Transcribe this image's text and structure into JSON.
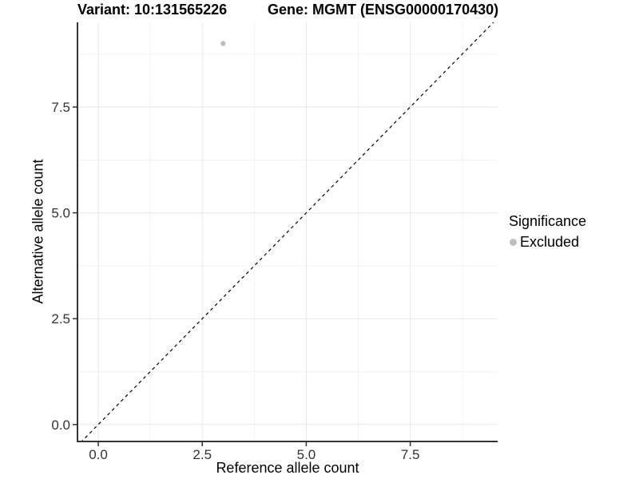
{
  "chart_data": {
    "type": "scatter",
    "title_variant": "Variant: 10:131565226",
    "title_gene": "Gene: MGMT (ENSG00000170430)",
    "xlabel": "Reference allele count",
    "ylabel": "Alternative allele count",
    "x_ticks": [
      0.0,
      2.5,
      5.0,
      7.5
    ],
    "y_ticks": [
      0.0,
      2.5,
      5.0,
      7.5
    ],
    "x_tick_labels": [
      "0.0",
      "2.5",
      "5.0",
      "7.5"
    ],
    "y_tick_labels": [
      "0.0",
      "2.5",
      "5.0",
      "7.5"
    ],
    "x_minor_ticks": [
      1.25,
      3.75,
      6.25,
      8.75
    ],
    "y_minor_ticks": [
      1.25,
      3.75,
      6.25,
      8.75
    ],
    "x_range": [
      -0.5,
      9.6
    ],
    "y_range": [
      -0.4,
      9.5
    ],
    "grid": true,
    "points": [
      {
        "x": 3,
        "y": 9,
        "series": "Excluded",
        "color": "#bebebe"
      }
    ],
    "reference_line": {
      "type": "identity",
      "style": "dashed",
      "color": "#000000"
    },
    "legend": {
      "title": "Significance",
      "position": "right",
      "entries": [
        {
          "label": "Excluded",
          "color": "#bebebe",
          "marker": "circle"
        }
      ]
    },
    "colors": {
      "point": "#bebebe",
      "grid_major": "#e7e7e7",
      "grid_minor": "#f2f2f2",
      "axis_line": "#333333",
      "tick_text": "#333333",
      "title_text": "#000000",
      "dashed_line": "#000000",
      "background": "#ffffff"
    }
  }
}
